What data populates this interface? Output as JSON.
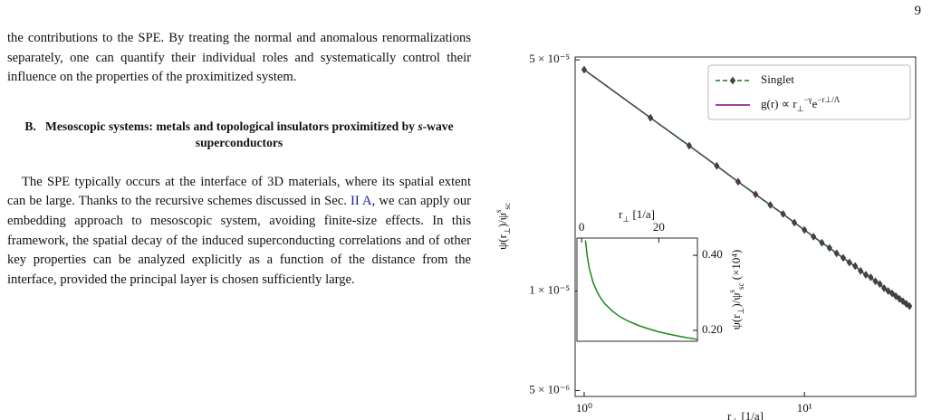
{
  "page_number": "9",
  "paragraph_1": "the contributions to the SPE. By treating the normal and anomalous renormalizations separately, one can quantify their individual roles and systematically control their influence on the properties of the proximitized system.",
  "section": {
    "number": "B.",
    "title_parts": [
      "Mesoscopic systems: metals and topological insulators proximitized by ",
      "s",
      "-wave superconductors"
    ]
  },
  "paragraph_2": {
    "before": "The SPE typically occurs at the interface of 3D materials, where its spatial extent can be large. Thanks to the recursive schemes discussed in Sec. ",
    "link": "II A",
    "after": ", we can apply our embedding approach to mesoscopic system, avoiding finite-size effects. In this framework, the spatial decay of the induced superconducting correlations and of other key properties can be analyzed explicitly as a function of the distance from the interface, provided the principal layer is chosen sufficiently large."
  },
  "chart_data": [
    {
      "type": "line",
      "xlog": true,
      "ylog": true,
      "x": [
        1,
        2,
        3,
        4,
        5,
        6,
        7,
        8,
        9,
        10,
        11,
        12,
        13,
        14,
        15,
        16,
        17,
        18,
        19,
        20,
        21,
        22,
        23,
        24,
        25,
        26,
        27,
        28,
        29,
        30
      ],
      "series": [
        {
          "name": [
            "Singlet"
          ],
          "color": "#157a15",
          "marker_color": "#444444",
          "linestyle": "dashed",
          "marker": "diamond",
          "values": [
            4.67e-05,
            3.34e-05,
            2.75e-05,
            2.39e-05,
            2.14e-05,
            1.96e-05,
            1.82e-05,
            1.71e-05,
            1.61e-05,
            1.53e-05,
            1.46e-05,
            1.4e-05,
            1.35e-05,
            1.3e-05,
            1.26e-05,
            1.22e-05,
            1.19e-05,
            1.15e-05,
            1.12e-05,
            1.1e-05,
            1.07e-05,
            1.05e-05,
            1.02e-05,
            1e-05,
            9.84e-06,
            9.65e-06,
            9.47e-06,
            9.31e-06,
            9.15e-06,
            9e-06
          ]
        },
        {
          "name": [
            "g(r) ∝ r",
            "⊥",
            "−γ",
            "e",
            "−r",
            "⊥",
            "/Λ"
          ],
          "color": "#800080",
          "linestyle": "solid",
          "values": [
            4.67e-05,
            3.34e-05,
            2.75e-05,
            2.39e-05,
            2.14e-05,
            1.96e-05,
            1.82e-05,
            1.71e-05,
            1.61e-05,
            1.53e-05,
            1.46e-05,
            1.4e-05,
            1.35e-05,
            1.3e-05,
            1.26e-05,
            1.22e-05,
            1.19e-05,
            1.15e-05,
            1.12e-05,
            1.1e-05,
            1.07e-05,
            1.05e-05,
            1.02e-05,
            1e-05,
            9.84e-06,
            9.65e-06,
            9.47e-06,
            9.31e-06,
            9.15e-06,
            9e-06
          ]
        }
      ],
      "xlim": [
        0.91,
        32
      ],
      "ylim": [
        4.8e-06,
        5.1e-05
      ],
      "xticks": [
        {
          "value": 1,
          "label": "10⁰"
        },
        {
          "value": 10,
          "label": "10¹"
        }
      ],
      "yticks": [
        {
          "value": 5e-05,
          "label": "5 × 10⁻⁵"
        },
        {
          "value": 1e-05,
          "label": "1 × 10⁻⁵"
        },
        {
          "value": 5e-06,
          "label": "5 × 10⁻⁶"
        }
      ],
      "xlabel": [
        "r",
        "⊥",
        " [1/a]"
      ],
      "ylabel": [
        "ψ(r",
        "⊥",
        ")/ψ",
        "s",
        "sc"
      ],
      "legend": "upper right"
    },
    {
      "type": "line",
      "x": [
        1,
        1.5,
        2,
        3,
        4,
        5,
        6,
        8,
        10,
        12,
        15,
        18,
        20,
        24,
        27,
        30
      ],
      "series": [
        {
          "color": "#1a8a1a",
          "linestyle": "solid",
          "values": [
            0.44,
            0.395,
            0.365,
            0.327,
            0.303,
            0.285,
            0.271,
            0.251,
            0.236,
            0.225,
            0.212,
            0.202,
            0.196,
            0.187,
            0.181,
            0.176
          ]
        }
      ],
      "xlim": [
        -1.2,
        30
      ],
      "ylim": [
        0.171,
        0.446
      ],
      "xticks": [
        0,
        20
      ],
      "yticks": [
        {
          "value": 0.4,
          "label": "0.40"
        },
        {
          "value": 0.2,
          "label": "0.20"
        }
      ],
      "xlabel": [
        "r",
        "⊥",
        " [1/a]"
      ],
      "ylabel": [
        "ψ(r",
        "⊥",
        ")/ψ",
        "s",
        "sc",
        " (×10⁴)"
      ]
    }
  ]
}
